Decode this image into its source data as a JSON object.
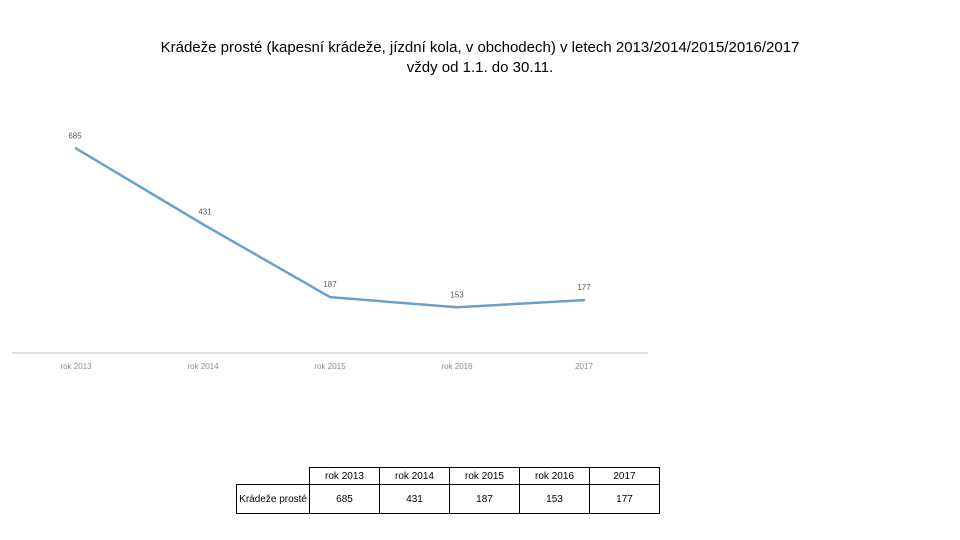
{
  "chart_data": {
    "type": "line",
    "title_line1": "Krádeže prosté (kapesní krádeže, jízdní kola, v obchodech) v letech 2013/2014/2015/2016/2017",
    "title_line2": "vždy od 1.1. do 30.11.",
    "categories": [
      "rok 2013",
      "rok 2014",
      "rok 2015",
      "rok 2016",
      "2017"
    ],
    "series": [
      {
        "name": "Krádeže prosté",
        "values": [
          685,
          431,
          187,
          153,
          177
        ]
      }
    ],
    "data_labels": [
      "685",
      "431",
      "187",
      "153",
      "177"
    ],
    "ylim": [
      0,
      750
    ],
    "grid": false,
    "legend": "none",
    "line_color": "#6d9fcd",
    "axis_color": "#d9d9d9",
    "tick_label_color": "#8c8c8c",
    "data_label_color": "#595959"
  },
  "table": {
    "row_label": "Krádeže prosté",
    "headers": [
      "rok 2013",
      "rok 2014",
      "rok 2015",
      "rok 2016",
      "2017"
    ],
    "values": [
      "685",
      "431",
      "187",
      "153",
      "177"
    ]
  }
}
